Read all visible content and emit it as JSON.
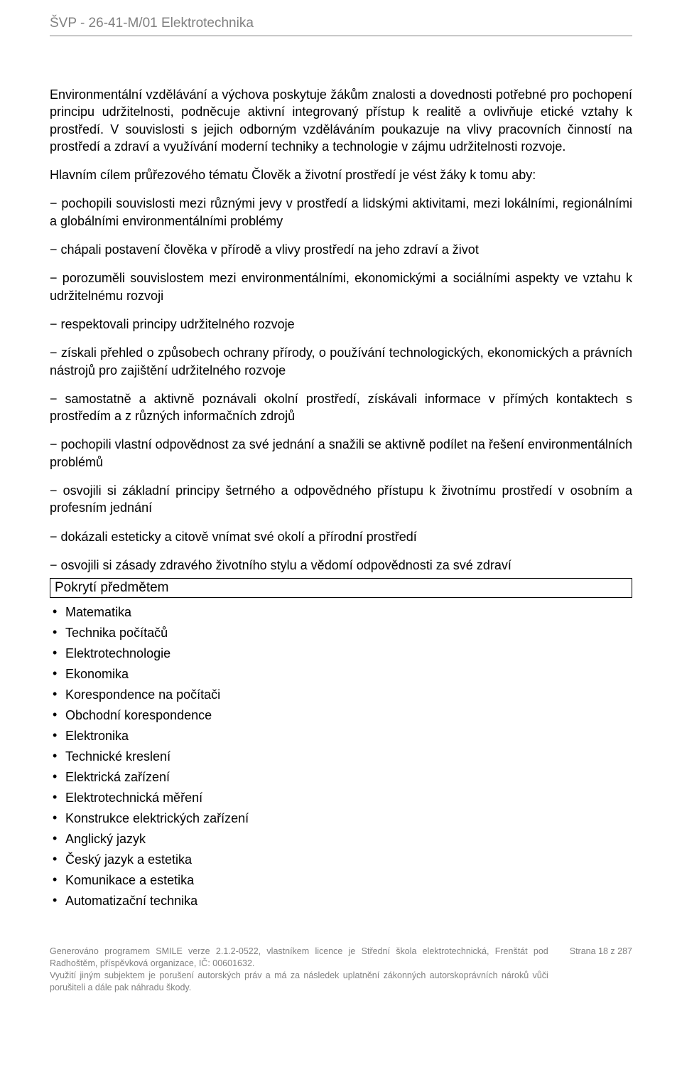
{
  "header": {
    "title": "ŠVP - 26-41-M/01 Elektrotechnika"
  },
  "body": {
    "p1": "Environmentální vzdělávání a výchova poskytuje žákům znalosti a dovednosti potřebné pro pochopení principu udržitelnosti, podněcuje aktivní integrovaný přístup k realitě a ovlivňuje etické vztahy k prostředí. V souvislosti s jejich odborným vzděláváním poukazuje na vlivy pracovních činností na prostředí a zdraví a využívání moderní techniky a technologie v zájmu udržitelnosti rozvoje.",
    "p2": "Hlavním cílem průřezového tématu Člověk a životní prostředí je vést žáky k tomu aby:",
    "d1": "− pochopili souvislosti mezi různými jevy v prostředí a lidskými aktivitami, mezi lokálními, regionálními a globálními environmentálními problémy",
    "d2": "− chápali postavení člověka v přírodě a vlivy prostředí na jeho zdraví a život",
    "d3": "− porozuměli souvislostem mezi environmentálními, ekonomickými a sociálními aspekty ve vztahu k udržitelnému rozvoji",
    "d4": "− respektovali principy udržitelného rozvoje",
    "d5": "− získali přehled o způsobech ochrany přírody, o používání technologických, ekonomických a právních nástrojů pro zajištění udržitelného rozvoje",
    "d6": "− samostatně a aktivně poznávali okolní prostředí, získávali informace v přímých kontaktech s prostředím a z různých informačních zdrojů",
    "d7": "− pochopili vlastní odpovědnost za své jednání a snažili se aktivně podílet na řešení environmentálních problémů",
    "d8": "− osvojili si základní principy šetrného a odpovědného přístupu k životnímu prostředí v osobním a profesním jednání",
    "d9": "− dokázali esteticky a citově vnímat své okolí a přírodní prostředí",
    "d10": "− osvojili si zásady zdravého životního stylu a vědomí odpovědnosti za své zdraví"
  },
  "coverage": {
    "title": "Pokrytí předmětem",
    "items": [
      "Matematika",
      "Technika počítačů",
      "Elektrotechnologie",
      "Ekonomika",
      "Korespondence na počítači",
      "Obchodní korespondence",
      "Elektronika",
      "Technické kreslení",
      "Elektrická zařízení",
      "Elektrotechnická měření",
      "Konstrukce elektrických zařízení",
      "Anglický jazyk",
      "Český jazyk a estetika",
      "Komunikace a estetika",
      "Automatizační technika"
    ]
  },
  "footer": {
    "line1": "Generováno programem SMILE verze 2.1.2-0522, vlastníkem licence je Střední škola elektrotechnická, Frenštát pod Radhoštěm, příspěvková organizace, IČ: 00601632.",
    "line2": "Využití jiným subjektem je porušení autorských práv a má za následek uplatnění zákonných autorskoprávních nároků vůči porušiteli a dále pak náhradu škody.",
    "page": "Strana 18 z 287"
  }
}
